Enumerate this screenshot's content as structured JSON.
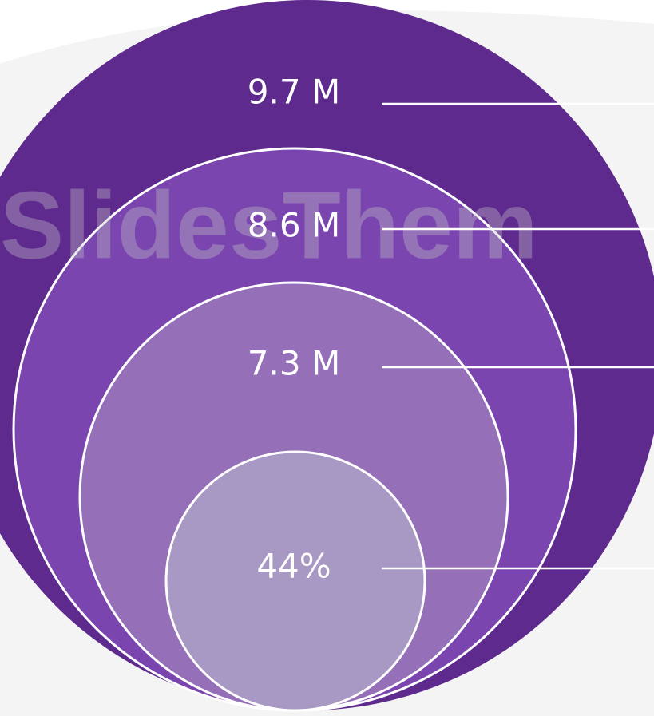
{
  "watermark": "SlidesThem",
  "levels": [
    {
      "label": "9.7 M"
    },
    {
      "label": "8.6 M"
    },
    {
      "label": "7.3 M"
    },
    {
      "label": "44%"
    }
  ]
}
